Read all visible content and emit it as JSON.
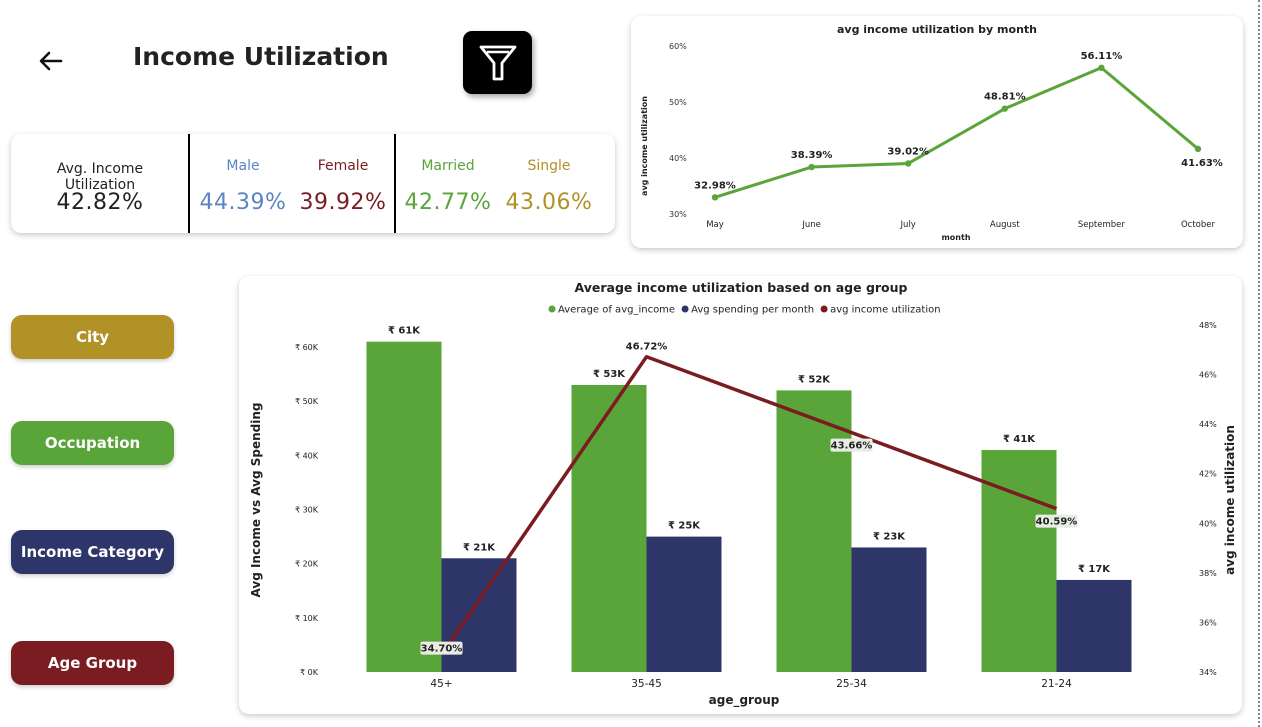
{
  "header": {
    "title": "Income Utilization"
  },
  "kpi": {
    "overall": {
      "label": "Avg. Income Utilization",
      "value": "42.82%"
    },
    "male": {
      "label": "Male",
      "value": "44.39%"
    },
    "female": {
      "label": "Female",
      "value": "39.92%"
    },
    "married": {
      "label": "Married",
      "value": "42.77%"
    },
    "single": {
      "label": "Single",
      "value": "43.06%"
    }
  },
  "nav": {
    "city": "City",
    "occupation": "Occupation",
    "income_category": "Income Category",
    "age_group": "Age Group"
  },
  "colors": {
    "green": "#5aa53a",
    "navy": "#2e3669",
    "maroon": "#7a1c22",
    "gold": "#b09227",
    "male": "#5b84c4",
    "female": "#7a1c22",
    "married": "#5aa53a",
    "single": "#b09227"
  },
  "chart_data": [
    {
      "type": "line",
      "title": "avg income utilization by month",
      "xlabel": "month",
      "ylabel": "avg income utilization",
      "categories": [
        "May",
        "June",
        "July",
        "August",
        "September",
        "October"
      ],
      "values": [
        32.98,
        38.39,
        39.02,
        48.81,
        56.11,
        41.63
      ],
      "data_labels": [
        "32.98%",
        "38.39%",
        "39.02%",
        "48.81%",
        "56.11%",
        "41.63%"
      ],
      "ylim": [
        30,
        60
      ],
      "yticks": [
        "30%",
        "40%",
        "50%",
        "60%"
      ],
      "grid": false
    },
    {
      "type": "bar",
      "title": "Average income utilization based on age group",
      "xlabel": "age_group",
      "ylabel": "Avg Income vs Avg Spending",
      "y2label": "avg income utilization",
      "legend_placement": "top",
      "categories": [
        "45+",
        "35-45",
        "25-34",
        "21-24"
      ],
      "series": [
        {
          "name": "Average of avg_income",
          "values": [
            61000,
            53000,
            52000,
            41000
          ],
          "labels": [
            "₹ 61K",
            "₹ 53K",
            "₹ 52K",
            "₹ 41K"
          ]
        },
        {
          "name": "Avg spending per month",
          "values": [
            21000,
            25000,
            23000,
            17000
          ],
          "labels": [
            "₹ 21K",
            "₹ 25K",
            "₹ 23K",
            "₹ 17K"
          ]
        }
      ],
      "line_series": {
        "name": "avg income utilization",
        "values": [
          34.7,
          46.72,
          43.66,
          40.59
        ],
        "labels": [
          "34.70%",
          "46.72%",
          "43.66%",
          "40.59%"
        ]
      },
      "ylim": [
        0,
        65000
      ],
      "yticks": [
        0,
        10000,
        20000,
        30000,
        40000,
        50000,
        60000
      ],
      "yticklabels": [
        "₹ 0K",
        "₹ 10K",
        "₹ 20K",
        "₹ 30K",
        "₹ 40K",
        "₹ 50K",
        "₹ 60K"
      ],
      "y2lim": [
        34,
        48
      ],
      "y2ticks": [
        34,
        36,
        38,
        40,
        42,
        44,
        46,
        48
      ],
      "y2ticklabels": [
        "34%",
        "36%",
        "38%",
        "40%",
        "42%",
        "44%",
        "46%",
        "48%"
      ],
      "grid": false
    }
  ]
}
